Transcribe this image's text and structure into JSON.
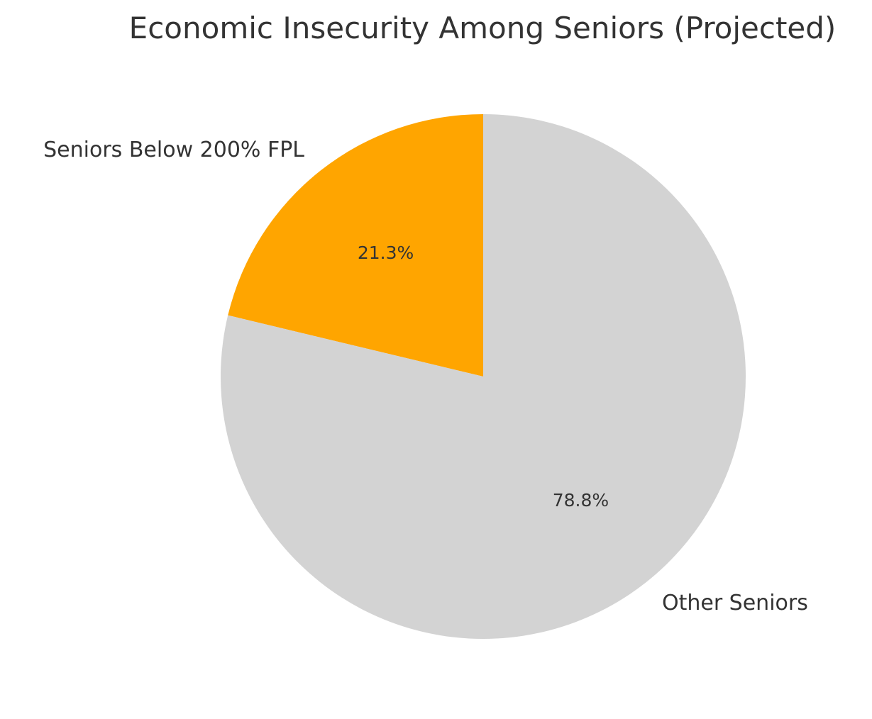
{
  "chart_data": {
    "type": "pie",
    "title": "Economic Insecurity Among Seniors (Projected)",
    "start_angle_deg": 90,
    "direction": "counterclockwise",
    "slices": [
      {
        "label": "Seniors Below 200% FPL",
        "value": 21.25,
        "percent_label": "21.3%",
        "color": "#FFA500"
      },
      {
        "label": "Other Seniors",
        "value": 78.75,
        "percent_label": "78.8%",
        "color": "#D3D3D3"
      }
    ]
  }
}
